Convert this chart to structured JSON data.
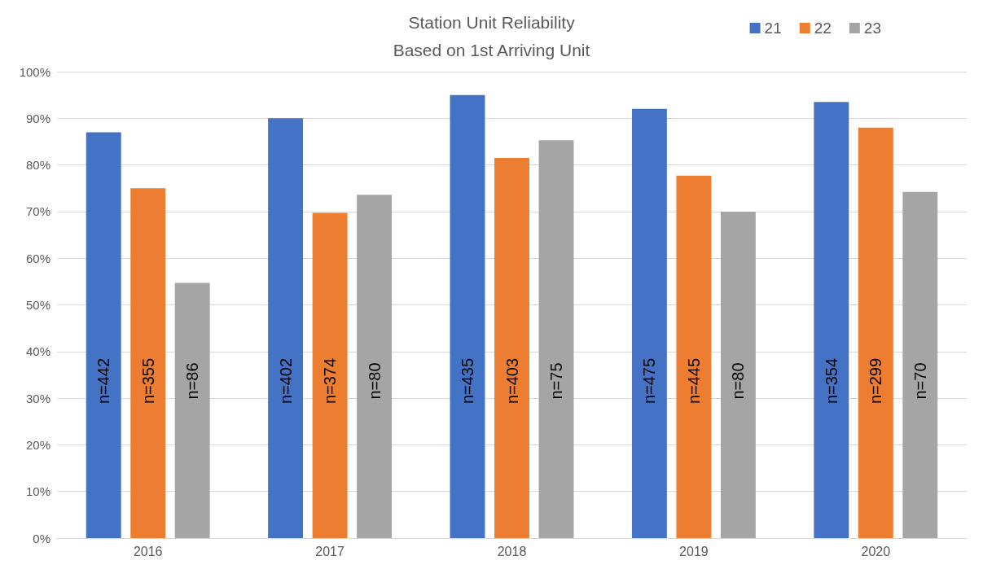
{
  "chart_data": {
    "type": "bar",
    "title": "Station Unit Reliability\nBased on 1st Arriving Unit",
    "categories": [
      "2016",
      "2017",
      "2018",
      "2019",
      "2020"
    ],
    "series": [
      {
        "name": "21",
        "color": "#4472c4",
        "values": [
          87,
          90,
          95,
          92,
          93.5
        ]
      },
      {
        "name": "22",
        "color": "#ed7d31",
        "values": [
          75,
          69.7,
          81.5,
          77.7,
          88
        ]
      },
      {
        "name": "23",
        "color": "#a5a5a5",
        "values": [
          54.7,
          73.6,
          85.3,
          70,
          74.2
        ]
      }
    ],
    "annotations": [
      "n=442",
      "n=355",
      "n=86",
      "n=402",
      "n=374",
      "n=80",
      "n=435",
      "n=403",
      "n=75",
      "n=475",
      "n=445",
      "n=80",
      "n=354",
      "n=299",
      "n=70"
    ],
    "ylim": [
      0,
      100
    ],
    "yticks": [
      {
        "value": 0,
        "label": "0%"
      },
      {
        "value": 10,
        "label": "10%"
      },
      {
        "value": 20,
        "label": "20%"
      },
      {
        "value": 30,
        "label": "30%"
      },
      {
        "value": 40,
        "label": "40%"
      },
      {
        "value": 50,
        "label": "50%"
      },
      {
        "value": 60,
        "label": "60%"
      },
      {
        "value": 70,
        "label": "70%"
      },
      {
        "value": 80,
        "label": "80%"
      },
      {
        "value": 90,
        "label": "90%"
      },
      {
        "value": 100,
        "label": "100%"
      }
    ],
    "grid": "y",
    "legend": "top right"
  }
}
